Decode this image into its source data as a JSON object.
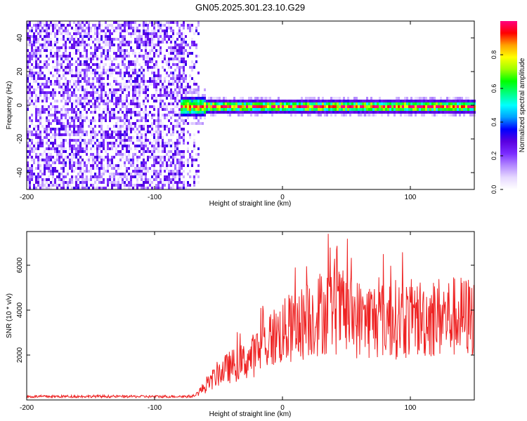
{
  "title": "GN05.2025.301.23.10.G29",
  "chart_data": [
    {
      "type": "heatmap",
      "xlabel": "Height of straight line (km)",
      "ylabel": "Frequency (Hz)",
      "xlim": [
        -200,
        150
      ],
      "ylim": [
        -50,
        50
      ],
      "xticks": [
        -200,
        -100,
        0,
        100
      ],
      "yticks": [
        -40,
        -20,
        0,
        20,
        40
      ],
      "noise_region_x": [
        -200,
        -65
      ],
      "signal_band": {
        "x_start": -80,
        "x_end": 150,
        "center_freq_hz": 0,
        "halfwidth_hz": 4
      },
      "colorbar": {
        "label": "Normalized spectral amplitude",
        "range": [
          0.0,
          1.0
        ],
        "ticks": [
          "0.0",
          "0.2",
          "0.4",
          "0.6",
          "0.8"
        ],
        "tick_values": [
          0.0,
          0.2,
          0.4,
          0.6,
          0.8
        ],
        "colors": [
          "#ffffff",
          "#e6d8ff",
          "#b388ff",
          "#7a2cff",
          "#5a00e0",
          "#0000ff",
          "#00a0ff",
          "#00ffff",
          "#00ff80",
          "#00ff00",
          "#a0ff00",
          "#ffff00",
          "#ffa000",
          "#ff0000",
          "#ff0080"
        ]
      }
    },
    {
      "type": "line",
      "xlabel": "Height of straight line (km)",
      "ylabel": "SNR (10 * v/v)",
      "xlim": [
        -200,
        150
      ],
      "ylim": [
        0,
        7500
      ],
      "xticks": [
        -200,
        -100,
        0,
        100
      ],
      "yticks": [
        2000,
        4000,
        6000
      ],
      "color": "#ee2222",
      "trend": {
        "x": [
          -200,
          -150,
          -100,
          -70,
          -60,
          -50,
          -40,
          -30,
          -20,
          -10,
          0,
          10,
          20,
          30,
          40,
          50,
          60,
          80,
          100,
          120,
          150
        ],
        "y": [
          150,
          160,
          150,
          160,
          600,
          1200,
          1500,
          1700,
          2100,
          2700,
          3000,
          3200,
          3600,
          3900,
          4000,
          3800,
          3600,
          3600,
          3600,
          3700,
          3700
        ]
      }
    }
  ]
}
